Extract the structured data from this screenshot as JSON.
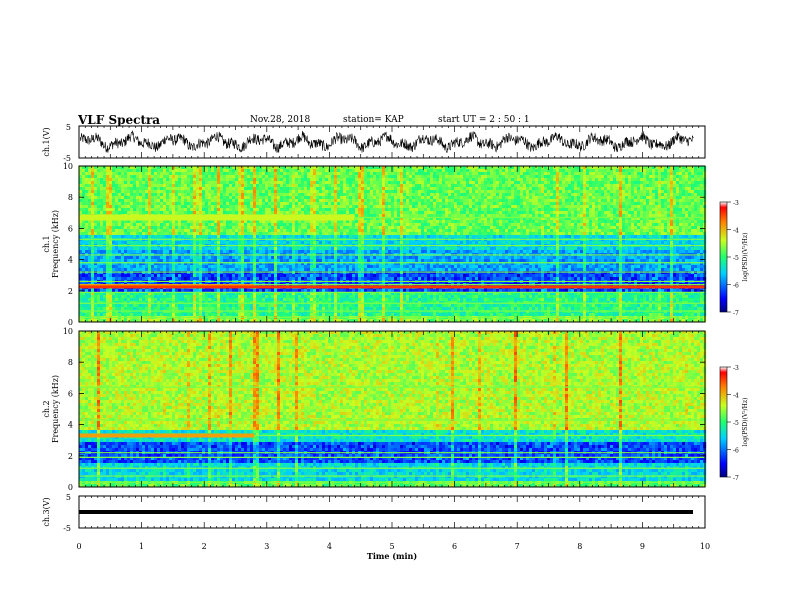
{
  "header": {
    "title": "VLF Spectra",
    "date": "Nov.28, 2018",
    "station": "station= KAP",
    "start": "start  UT =  2 : 50 : 1"
  },
  "chart_data": [
    {
      "type": "line",
      "name": "ch1-waveform",
      "ylabel": "ch.1(V)",
      "ylim": [
        -5,
        5
      ],
      "yticks": [
        "5",
        "-5"
      ],
      "xlim": [
        0,
        10
      ]
    },
    {
      "type": "heatmap",
      "name": "ch1-spectrogram",
      "ylabel": "ch.1\nFrequency (kHz)",
      "ylabel_lines": [
        "ch.1",
        "Frequency (kHz)"
      ],
      "ylim": [
        0,
        10
      ],
      "yticks": [
        "0",
        "2",
        "4",
        "6",
        "8",
        "10"
      ],
      "xlim": [
        0,
        10
      ],
      "colorbar": {
        "label": "log(PSD)(V²/Hz)",
        "range": [
          -7,
          -3
        ],
        "ticks": [
          "-3",
          "-4",
          "-5",
          "-6",
          "-7"
        ]
      },
      "bands_khz": [
        0.3,
        0.7,
        1.2,
        1.9,
        2.2,
        2.4,
        2.6,
        3.2,
        3.8,
        4.3,
        4.9,
        5.3,
        6.7
      ],
      "bright_band_khz": 2.3,
      "bright_band_until_min": 2.8
    },
    {
      "type": "heatmap",
      "name": "ch2-spectrogram",
      "ylabel": "ch.2\nFrequency (kHz)",
      "ylabel_lines": [
        "ch.2",
        "Frequency (kHz)"
      ],
      "ylim": [
        0,
        10
      ],
      "yticks": [
        "0",
        "2",
        "4",
        "6",
        "8",
        "10"
      ],
      "xlim": [
        0,
        10
      ],
      "colorbar": {
        "label": "log(PSD)(V²/Hz)",
        "range": [
          -7,
          -3
        ],
        "ticks": [
          "-3",
          "-4",
          "-5",
          "-6",
          "-7"
        ]
      },
      "bands_khz": [
        0.3,
        0.7,
        1.2,
        1.9,
        2.2,
        3.3,
        4.3,
        6.4
      ],
      "bright_band_khz": 3.3,
      "bright_band_until_min": 2.8
    },
    {
      "type": "line",
      "name": "ch3-waveform",
      "ylabel": "ch.3(V)",
      "ylim": [
        -5,
        5
      ],
      "yticks": [
        "5",
        "-5"
      ],
      "xlim": [
        0,
        10
      ],
      "constant_value": 0,
      "xlabel": "Time (min)",
      "xticks": [
        "0",
        "1",
        "2",
        "3",
        "4",
        "5",
        "6",
        "7",
        "8",
        "9",
        "10"
      ]
    }
  ]
}
